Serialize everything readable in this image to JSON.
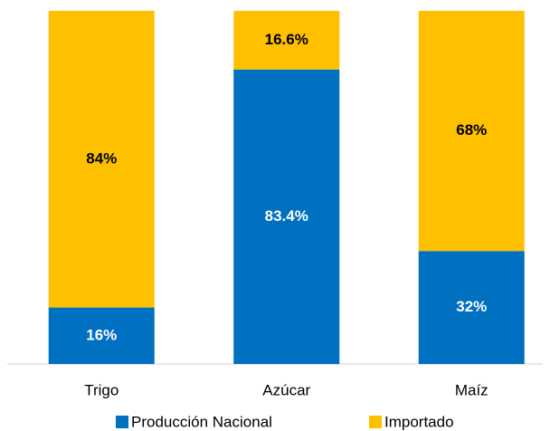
{
  "chart_data": {
    "type": "stacked_bar",
    "categories": [
      "Trigo",
      "Azúcar",
      "Maíz"
    ],
    "series": [
      {
        "name": "Producción Nacional",
        "color": "#0070c0",
        "values": [
          16,
          83.4,
          32
        ],
        "value_labels": [
          "16%",
          "83.4%",
          "32%"
        ]
      },
      {
        "name": "Importado",
        "color": "#ffc000",
        "values": [
          84,
          16.6,
          68
        ],
        "value_labels": [
          "84%",
          "16.6%",
          "68%"
        ]
      }
    ],
    "ylim": [
      0,
      100
    ],
    "legend": "bottom"
  }
}
